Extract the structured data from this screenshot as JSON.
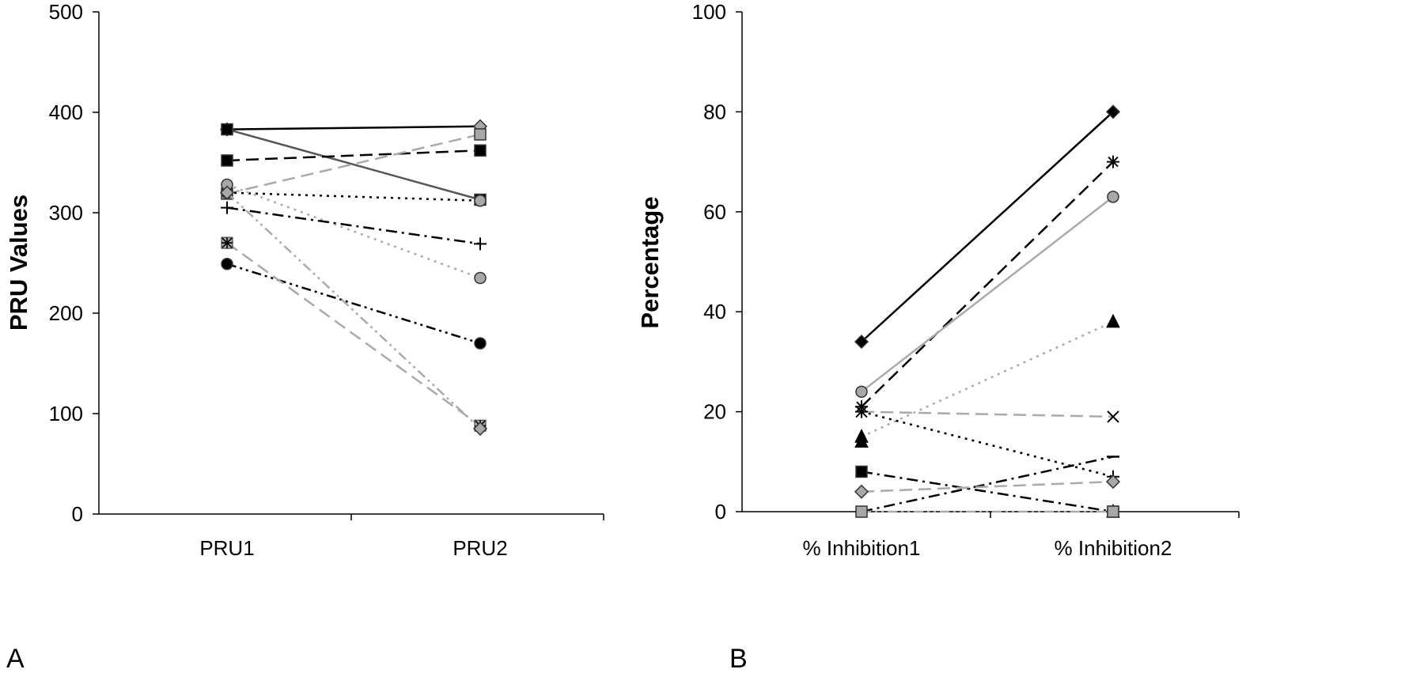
{
  "chart_data": [
    {
      "panel": "A",
      "type": "line",
      "categories": [
        "PRU1",
        "PRU2"
      ],
      "ylabel": "PRU Values",
      "xlabel": "",
      "ylim": [
        0,
        500
      ],
      "yticks": [
        "0",
        "100",
        "200",
        "300",
        "400",
        "500"
      ],
      "grid": false,
      "series": [
        {
          "values": [
            383,
            386
          ],
          "color": "#000000",
          "dash": "solid",
          "marker": "diamond-gray"
        },
        {
          "values": [
            383,
            313
          ],
          "color": "#555555",
          "dash": "solid",
          "marker": "square-black"
        },
        {
          "values": [
            352,
            362
          ],
          "color": "#000000",
          "dash": "long-dash",
          "marker": "square-black"
        },
        {
          "values": [
            319,
            378
          ],
          "color": "#aaaaaa",
          "dash": "long-dash",
          "marker": "square-gray"
        },
        {
          "values": [
            320,
            312
          ],
          "color": "#000000",
          "dash": "dot",
          "marker": "circle-gray"
        },
        {
          "values": [
            328,
            235
          ],
          "color": "#aaaaaa",
          "dash": "dot",
          "marker": "circle-gray"
        },
        {
          "values": [
            305,
            269
          ],
          "color": "#000000",
          "dash": "dash-dot",
          "marker": "plus"
        },
        {
          "values": [
            249,
            170
          ],
          "color": "#000000",
          "dash": "dash-dot-dot",
          "marker": "circle-black"
        },
        {
          "values": [
            270,
            88
          ],
          "color": "#aaaaaa",
          "dash": "long-dash",
          "marker": "star-square"
        },
        {
          "values": [
            320,
            85
          ],
          "color": "#aaaaaa",
          "dash": "dash-dot-dot",
          "marker": "diamond-gray"
        }
      ]
    },
    {
      "panel": "B",
      "type": "line",
      "categories": [
        "% Inhibition1",
        "% Inhibition2"
      ],
      "ylabel": "Percentage",
      "xlabel": "",
      "ylim": [
        0,
        100
      ],
      "yticks": [
        "0",
        "20",
        "40",
        "60",
        "80",
        "100"
      ],
      "grid": false,
      "series": [
        {
          "values": [
            34,
            80
          ],
          "color": "#000000",
          "dash": "solid",
          "marker": "diamond-black"
        },
        {
          "values": [
            21,
            70
          ],
          "color": "#000000",
          "dash": "long-dash",
          "marker": "star"
        },
        {
          "values": [
            24,
            63
          ],
          "color": "#aaaaaa",
          "dash": "solid",
          "marker": "circle-gray"
        },
        {
          "values": [
            15,
            38
          ],
          "color": "#aaaaaa",
          "dash": "dot",
          "marker": "triangle-black"
        },
        {
          "values": [
            20,
            19
          ],
          "color": "#aaaaaa",
          "dash": "long-dash",
          "marker": "x"
        },
        {
          "values": [
            20,
            7
          ],
          "color": "#000000",
          "dash": "dot",
          "marker": "plus"
        },
        {
          "values": [
            14,
            0
          ],
          "color": "#000000",
          "dash": "none",
          "marker": "triangle-black"
        },
        {
          "values": [
            0,
            11
          ],
          "color": "#000000",
          "dash": "dash-dot",
          "marker": "dash"
        },
        {
          "values": [
            8,
            0
          ],
          "color": "#000000",
          "dash": "dash-dot",
          "marker": "square-black"
        },
        {
          "values": [
            4,
            6
          ],
          "color": "#aaaaaa",
          "dash": "long-dash",
          "marker": "diamond-gray"
        },
        {
          "values": [
            0,
            0
          ],
          "color": "#aaaaaa",
          "dash": "dash-dot-dot",
          "marker": "square-gray"
        }
      ]
    }
  ]
}
